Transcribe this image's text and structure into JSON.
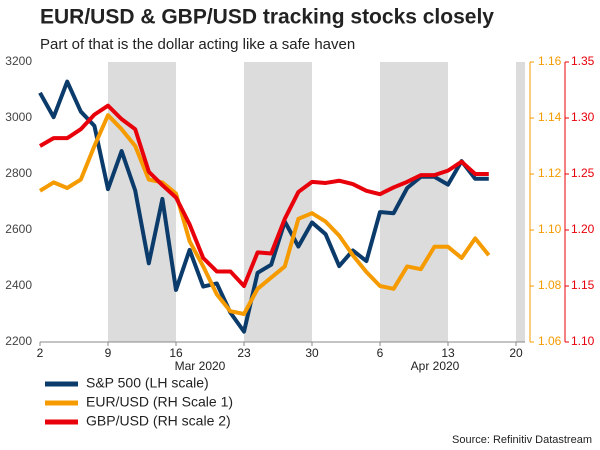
{
  "chart_data": {
    "type": "line",
    "title": "EUR/USD & GBP/USD tracking stocks closely",
    "subtitle": "Part of that is the dollar acting like a safe haven",
    "source": "Source: Refinitiv Datastream",
    "categories": [
      "2",
      null,
      null,
      null,
      null,
      "9",
      null,
      null,
      null,
      null,
      "16",
      null,
      null,
      null,
      null,
      "23",
      null,
      null,
      null,
      null,
      "30",
      null,
      null,
      null,
      null,
      "6",
      null,
      null,
      null,
      null,
      "13",
      null,
      null,
      null,
      null,
      "20"
    ],
    "x_group_labels": [
      "Mar 2020",
      "Apr 2020"
    ],
    "ylim": [
      2200,
      3200
    ],
    "yticks": [
      2200,
      2400,
      2600,
      2800,
      3000,
      3200
    ],
    "y2lim": [
      1.06,
      1.16
    ],
    "y2ticks": [
      1.06,
      1.08,
      {
        "value": 1.1,
        "label": "1.10"
      },
      1.12,
      1.14,
      1.16
    ],
    "y3lim": [
      1.1,
      1.35
    ],
    "y3ticks": [
      {
        "value": 1.1,
        "label": "1.10"
      },
      1.15,
      {
        "value": 1.2,
        "label": "1.20"
      },
      1.25,
      {
        "value": 1.3,
        "label": "1.30"
      },
      1.35
    ],
    "series": [
      {
        "name": "S&P 500 (LH scale)",
        "color": "#0b3b6b",
        "axis": "y",
        "values": [
          3090,
          3003,
          3130,
          3023,
          2972,
          2746,
          2882,
          2741,
          2481,
          2711,
          2386,
          2529,
          2398,
          2409,
          2305,
          2237,
          2447,
          2476,
          2630,
          2541,
          2627,
          2585,
          2471,
          2527,
          2489,
          2664,
          2660,
          2750,
          2790,
          2790,
          2762,
          2846,
          2783,
          2783,
          null,
          null
        ]
      },
      {
        "name": "EUR/USD (RH Scale 1)",
        "color": "#f59b00",
        "axis": "y2",
        "values": [
          1.114,
          1.117,
          1.115,
          1.118,
          1.13,
          1.141,
          1.136,
          1.13,
          1.118,
          1.117,
          1.113,
          1.096,
          1.087,
          1.077,
          1.071,
          1.07,
          1.079,
          1.083,
          1.087,
          1.104,
          1.106,
          1.103,
          1.098,
          1.091,
          1.085,
          1.08,
          1.079,
          1.087,
          1.086,
          1.094,
          1.094,
          1.09,
          1.097,
          1.091,
          null,
          null
        ]
      },
      {
        "name": "GBP/USD (RH scale 2)",
        "color": "#e8000a",
        "axis": "y3",
        "values": [
          1.275,
          1.282,
          1.282,
          1.29,
          1.303,
          1.311,
          1.299,
          1.29,
          1.252,
          1.24,
          1.229,
          1.205,
          1.175,
          1.163,
          1.163,
          1.15,
          1.18,
          1.179,
          1.21,
          1.234,
          1.243,
          1.242,
          1.244,
          1.241,
          1.235,
          1.232,
          1.238,
          1.243,
          1.249,
          1.249,
          1.253,
          1.261,
          1.25,
          1.25,
          null,
          null
        ]
      }
    ]
  }
}
